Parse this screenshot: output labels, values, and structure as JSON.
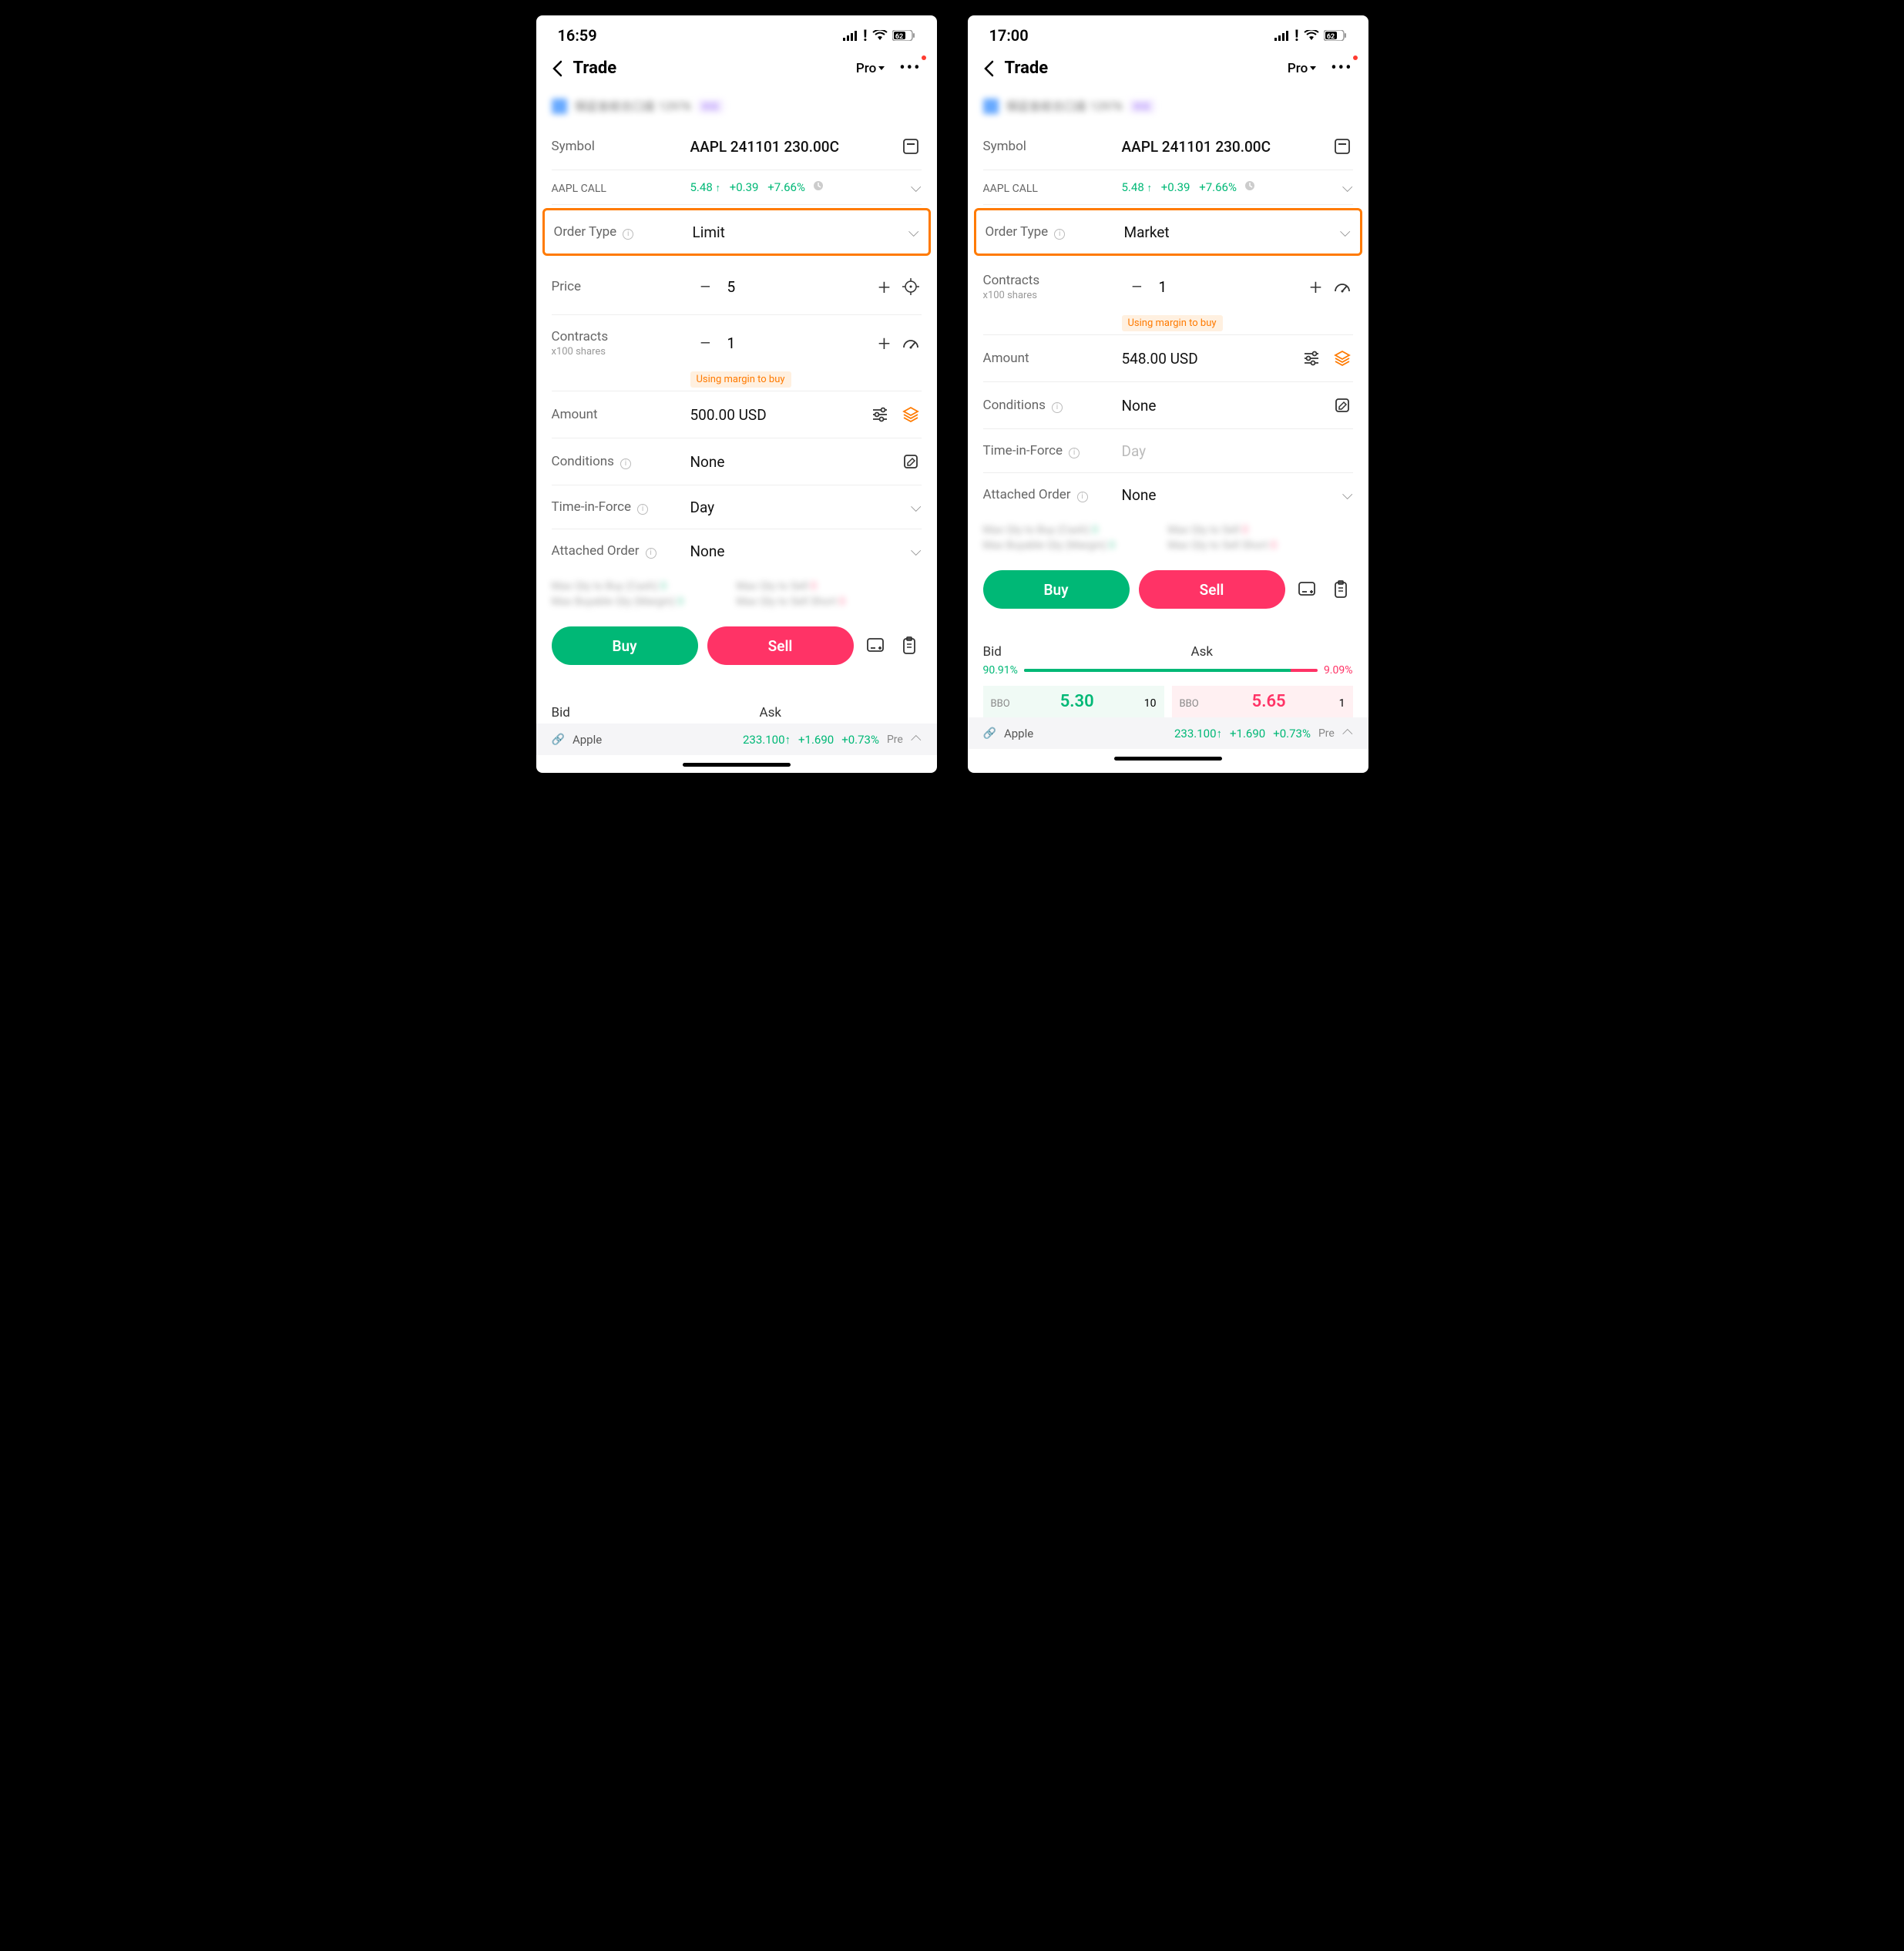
{
  "colors": {
    "green": "#00b876",
    "red": "#ff3366",
    "orange": "#ff7a00",
    "orange_bg": "#fff0e0",
    "divider": "#eeeeee",
    "text_muted": "#666666",
    "text_light": "#999999",
    "text_dark": "#111111",
    "highlight_border": "#ff7a00"
  },
  "left": {
    "status": {
      "time": "16:59",
      "battery": "62"
    },
    "header": {
      "title": "Trade",
      "mode": "Pro"
    },
    "account": {
      "name_blurred": "保証金総合口座",
      "id_blurred": "12976",
      "badge": "模擬"
    },
    "symbol": {
      "label": "Symbol",
      "value": "AAPL 241101 230.00C"
    },
    "quote": {
      "name": "AAPL CALL",
      "price": "5.48",
      "change": "+0.39",
      "change_pct": "+7.66%"
    },
    "order_type": {
      "label": "Order Type",
      "value": "Limit"
    },
    "price": {
      "label": "Price",
      "value": "5"
    },
    "contracts": {
      "label": "Contracts",
      "sublabel": "x100 shares",
      "value": "1"
    },
    "margin_badge": "Using margin to buy",
    "amount": {
      "label": "Amount",
      "value": "500.00 USD"
    },
    "conditions": {
      "label": "Conditions",
      "value": "None"
    },
    "tif": {
      "label": "Time-in-Force",
      "value": "Day"
    },
    "attached": {
      "label": "Attached Order",
      "value": "None"
    },
    "maxqty": {
      "l1": "Max Qty to Buy (Cash)",
      "l2": "Max Qty to Sell",
      "l3": "Max Buyable Qty (Margin)",
      "l4": "Max Qty to Sell Short"
    },
    "buttons": {
      "buy": "Buy",
      "sell": "Sell"
    },
    "bidask": {
      "bid": "Bid",
      "ask": "Ask"
    },
    "ticker": {
      "name": "Apple",
      "price": "233.100",
      "change": "+1.690",
      "change_pct": "+0.73%",
      "session": "Pre"
    }
  },
  "right": {
    "status": {
      "time": "17:00",
      "battery": "62"
    },
    "header": {
      "title": "Trade",
      "mode": "Pro"
    },
    "account": {
      "name_blurred": "保証金総合口座",
      "id_blurred": "12976",
      "badge": "模擬"
    },
    "symbol": {
      "label": "Symbol",
      "value": "AAPL 241101 230.00C"
    },
    "quote": {
      "name": "AAPL CALL",
      "price": "5.48",
      "change": "+0.39",
      "change_pct": "+7.66%"
    },
    "order_type": {
      "label": "Order Type",
      "value": "Market"
    },
    "contracts": {
      "label": "Contracts",
      "sublabel": "x100 shares",
      "value": "1"
    },
    "margin_badge": "Using margin to buy",
    "amount": {
      "label": "Amount",
      "value": "548.00 USD"
    },
    "conditions": {
      "label": "Conditions",
      "value": "None"
    },
    "tif": {
      "label": "Time-in-Force",
      "value": "Day",
      "disabled": true
    },
    "attached": {
      "label": "Attached Order",
      "value": "None"
    },
    "maxqty": {
      "l1": "Max Qty to Buy (Cash)",
      "l2": "Max Qty to Sell",
      "l3": "Max Buyable Qty (Margin)",
      "l4": "Max Qty to Sell Short"
    },
    "buttons": {
      "buy": "Buy",
      "sell": "Sell"
    },
    "bidask": {
      "bid": "Bid",
      "ask": "Ask",
      "bid_pct": "90.91%",
      "ask_pct": "9.09%",
      "bid_pct_num": 90.91,
      "bbo_label": "BBO",
      "bid_price": "5.30",
      "bid_qty": "10",
      "ask_price": "5.65",
      "ask_qty": "1"
    },
    "ticker": {
      "name": "Apple",
      "price": "233.100",
      "change": "+1.690",
      "change_pct": "+0.73%",
      "session": "Pre"
    }
  }
}
